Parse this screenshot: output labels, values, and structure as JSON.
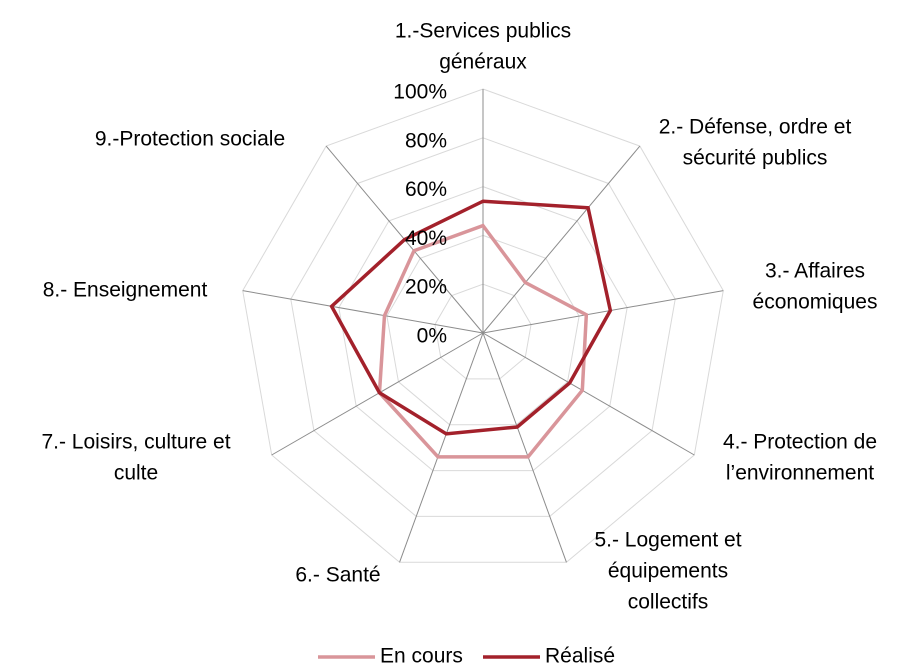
{
  "chart_data": {
    "type": "radar",
    "categories": [
      [
        "1.-Services publics",
        "généraux"
      ],
      [
        "2.- Défense, ordre et",
        "sécurité publics"
      ],
      [
        "3.- Affaires",
        "économiques"
      ],
      [
        "4.- Protection de",
        "l’environnement"
      ],
      [
        "5.- Logement et",
        "équipements",
        "collectifs"
      ],
      [
        "6.- Santé"
      ],
      [
        "7.- Loisirs, culture et",
        "culte"
      ],
      [
        "8.- Enseignement"
      ],
      [
        "9.-Protection sociale"
      ]
    ],
    "series": [
      {
        "name": "En cours",
        "color": "#d9959a",
        "values": [
          44,
          27,
          43,
          47,
          54,
          54,
          49,
          41,
          44
        ]
      },
      {
        "name": "Réalisé",
        "color": "#a3212b",
        "values": [
          54,
          67,
          53,
          41,
          41,
          44,
          49,
          63,
          50
        ]
      }
    ],
    "ylim": [
      0,
      100
    ],
    "yticks": [
      {
        "value": 0,
        "label": "0%"
      },
      {
        "value": 20,
        "label": "20%"
      },
      {
        "value": 40,
        "label": "40%"
      },
      {
        "value": 60,
        "label": "60%"
      },
      {
        "value": 80,
        "label": "80%"
      },
      {
        "value": 100,
        "label": "100%"
      }
    ],
    "grid": true
  }
}
